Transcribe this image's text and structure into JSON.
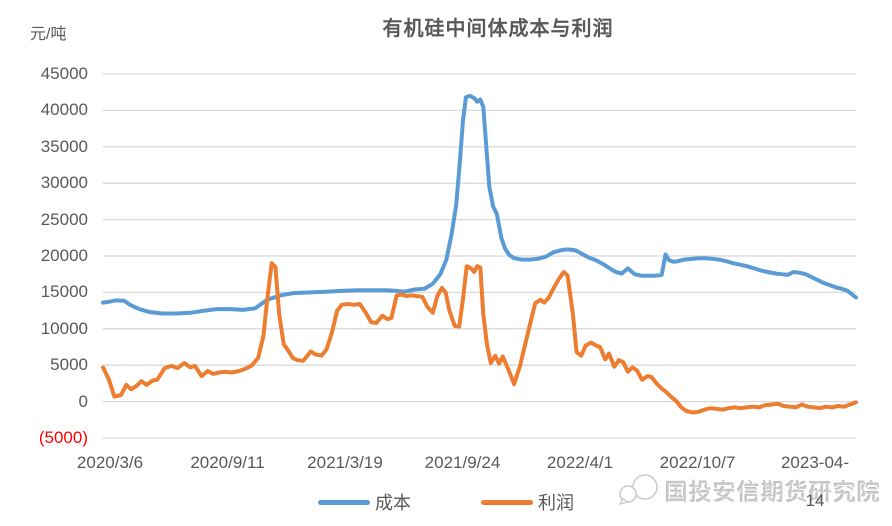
{
  "chart_data": {
    "type": "line",
    "title": "有机硅中间体成本与利润",
    "y_unit_label": "元/吨",
    "ylim": [
      -5000,
      45000
    ],
    "y_tick_interval": 5000,
    "grid": true,
    "legend_position": "bottom",
    "x_encoding": "t is fraction of time axis from 2020/3/6 to 2023-04-14 (weekly data)",
    "y_ticks": [
      {
        "label": "45000"
      },
      {
        "label": "40000"
      },
      {
        "label": "35000"
      },
      {
        "label": "30000"
      },
      {
        "label": "25000"
      },
      {
        "label": "20000"
      },
      {
        "label": "15000"
      },
      {
        "label": "10000"
      },
      {
        "label": "5000"
      },
      {
        "label": "0"
      },
      {
        "label": "(5000)",
        "color": "#FF0000"
      }
    ],
    "x_ticks": [
      {
        "label": "2020/3/6",
        "lines": [
          "2020/3/6"
        ]
      },
      {
        "label": "2020/9/11",
        "lines": [
          "2020/9/11"
        ]
      },
      {
        "label": "2021/3/19",
        "lines": [
          "2021/3/19"
        ]
      },
      {
        "label": "2021/9/24",
        "lines": [
          "2021/9/24"
        ]
      },
      {
        "label": "2022/4/1",
        "lines": [
          "2022/4/1"
        ]
      },
      {
        "label": "2022/10/7",
        "lines": [
          "2022/10/7"
        ]
      },
      {
        "label": "2023-04-14",
        "lines": [
          "2023-04-",
          "14"
        ]
      }
    ],
    "series": [
      {
        "name": "成本",
        "color": "#5B9BD5",
        "points": [
          [
            0.0,
            13600
          ],
          [
            0.007,
            13700
          ],
          [
            0.017,
            13900
          ],
          [
            0.028,
            13850
          ],
          [
            0.036,
            13300
          ],
          [
            0.048,
            12700
          ],
          [
            0.062,
            12300
          ],
          [
            0.079,
            12100
          ],
          [
            0.098,
            12100
          ],
          [
            0.116,
            12200
          ],
          [
            0.135,
            12500
          ],
          [
            0.151,
            12700
          ],
          [
            0.169,
            12700
          ],
          [
            0.186,
            12600
          ],
          [
            0.202,
            12800
          ],
          [
            0.218,
            14000
          ],
          [
            0.236,
            14600
          ],
          [
            0.253,
            14900
          ],
          [
            0.276,
            15000
          ],
          [
            0.296,
            15100
          ],
          [
            0.316,
            15200
          ],
          [
            0.336,
            15300
          ],
          [
            0.356,
            15300
          ],
          [
            0.376,
            15300
          ],
          [
            0.39,
            15200
          ],
          [
            0.4,
            15100
          ],
          [
            0.414,
            15400
          ],
          [
            0.427,
            15500
          ],
          [
            0.438,
            16200
          ],
          [
            0.448,
            17500
          ],
          [
            0.456,
            19500
          ],
          [
            0.463,
            23000
          ],
          [
            0.469,
            27000
          ],
          [
            0.474,
            33000
          ],
          [
            0.478,
            38500
          ],
          [
            0.482,
            41800
          ],
          [
            0.487,
            42000
          ],
          [
            0.493,
            41700
          ],
          [
            0.497,
            41200
          ],
          [
            0.501,
            41500
          ],
          [
            0.505,
            40500
          ],
          [
            0.509,
            35000
          ],
          [
            0.513,
            29500
          ],
          [
            0.518,
            26800
          ],
          [
            0.523,
            25800
          ],
          [
            0.529,
            22500
          ],
          [
            0.534,
            21000
          ],
          [
            0.539,
            20200
          ],
          [
            0.546,
            19700
          ],
          [
            0.556,
            19500
          ],
          [
            0.566,
            19500
          ],
          [
            0.577,
            19600
          ],
          [
            0.588,
            19900
          ],
          [
            0.598,
            20500
          ],
          [
            0.608,
            20800
          ],
          [
            0.617,
            20900
          ],
          [
            0.627,
            20800
          ],
          [
            0.636,
            20300
          ],
          [
            0.645,
            19800
          ],
          [
            0.655,
            19400
          ],
          [
            0.664,
            18900
          ],
          [
            0.673,
            18300
          ],
          [
            0.681,
            17800
          ],
          [
            0.689,
            17600
          ],
          [
            0.697,
            18300
          ],
          [
            0.706,
            17500
          ],
          [
            0.715,
            17300
          ],
          [
            0.724,
            17300
          ],
          [
            0.734,
            17300
          ],
          [
            0.742,
            17400
          ],
          [
            0.747,
            20200
          ],
          [
            0.752,
            19400
          ],
          [
            0.758,
            19200
          ],
          [
            0.764,
            19300
          ],
          [
            0.772,
            19500
          ],
          [
            0.782,
            19600
          ],
          [
            0.791,
            19700
          ],
          [
            0.8,
            19700
          ],
          [
            0.81,
            19600
          ],
          [
            0.818,
            19500
          ],
          [
            0.827,
            19300
          ],
          [
            0.837,
            19000
          ],
          [
            0.846,
            18800
          ],
          [
            0.855,
            18600
          ],
          [
            0.865,
            18300
          ],
          [
            0.874,
            18000
          ],
          [
            0.883,
            17800
          ],
          [
            0.893,
            17600
          ],
          [
            0.901,
            17500
          ],
          [
            0.909,
            17400
          ],
          [
            0.917,
            17800
          ],
          [
            0.925,
            17700
          ],
          [
            0.933,
            17500
          ],
          [
            0.941,
            17100
          ],
          [
            0.949,
            16700
          ],
          [
            0.957,
            16300
          ],
          [
            0.965,
            16000
          ],
          [
            0.973,
            15700
          ],
          [
            0.981,
            15500
          ],
          [
            0.989,
            15200
          ],
          [
            0.994,
            14800
          ],
          [
            1.0,
            14300
          ]
        ]
      },
      {
        "name": "利润",
        "color": "#ED7D31",
        "points": [
          [
            0.0,
            4700
          ],
          [
            0.008,
            3000
          ],
          [
            0.015,
            700
          ],
          [
            0.024,
            900
          ],
          [
            0.031,
            2300
          ],
          [
            0.037,
            1700
          ],
          [
            0.044,
            2100
          ],
          [
            0.051,
            2800
          ],
          [
            0.058,
            2300
          ],
          [
            0.066,
            2900
          ],
          [
            0.072,
            3000
          ],
          [
            0.082,
            4600
          ],
          [
            0.091,
            4900
          ],
          [
            0.099,
            4600
          ],
          [
            0.108,
            5300
          ],
          [
            0.116,
            4700
          ],
          [
            0.122,
            4900
          ],
          [
            0.131,
            3500
          ],
          [
            0.139,
            4200
          ],
          [
            0.146,
            3800
          ],
          [
            0.154,
            4000
          ],
          [
            0.162,
            4100
          ],
          [
            0.171,
            4000
          ],
          [
            0.181,
            4200
          ],
          [
            0.189,
            4500
          ],
          [
            0.198,
            5000
          ],
          [
            0.206,
            6000
          ],
          [
            0.213,
            9000
          ],
          [
            0.218,
            14000
          ],
          [
            0.224,
            19000
          ],
          [
            0.229,
            18500
          ],
          [
            0.234,
            12000
          ],
          [
            0.24,
            7900
          ],
          [
            0.246,
            7000
          ],
          [
            0.252,
            6000
          ],
          [
            0.258,
            5700
          ],
          [
            0.266,
            5600
          ],
          [
            0.276,
            6900
          ],
          [
            0.282,
            6500
          ],
          [
            0.29,
            6300
          ],
          [
            0.297,
            7200
          ],
          [
            0.304,
            9500
          ],
          [
            0.311,
            12500
          ],
          [
            0.317,
            13300
          ],
          [
            0.325,
            13400
          ],
          [
            0.333,
            13300
          ],
          [
            0.341,
            13400
          ],
          [
            0.349,
            12200
          ],
          [
            0.356,
            10900
          ],
          [
            0.363,
            10800
          ],
          [
            0.371,
            11800
          ],
          [
            0.378,
            11300
          ],
          [
            0.383,
            11500
          ],
          [
            0.39,
            14600
          ],
          [
            0.396,
            14700
          ],
          [
            0.403,
            14500
          ],
          [
            0.41,
            14600
          ],
          [
            0.416,
            14500
          ],
          [
            0.424,
            14400
          ],
          [
            0.431,
            13000
          ],
          [
            0.438,
            12200
          ],
          [
            0.444,
            14500
          ],
          [
            0.45,
            15600
          ],
          [
            0.455,
            15000
          ],
          [
            0.46,
            12500
          ],
          [
            0.467,
            10400
          ],
          [
            0.473,
            10300
          ],
          [
            0.478,
            14000
          ],
          [
            0.483,
            18600
          ],
          [
            0.489,
            18300
          ],
          [
            0.493,
            17800
          ],
          [
            0.497,
            18600
          ],
          [
            0.501,
            18400
          ],
          [
            0.505,
            12000
          ],
          [
            0.51,
            7800
          ],
          [
            0.515,
            5300
          ],
          [
            0.521,
            6300
          ],
          [
            0.526,
            5200
          ],
          [
            0.531,
            6200
          ],
          [
            0.538,
            4500
          ],
          [
            0.546,
            2400
          ],
          [
            0.554,
            5000
          ],
          [
            0.561,
            8000
          ],
          [
            0.568,
            11000
          ],
          [
            0.574,
            13500
          ],
          [
            0.581,
            14000
          ],
          [
            0.586,
            13600
          ],
          [
            0.592,
            14300
          ],
          [
            0.598,
            15500
          ],
          [
            0.605,
            16800
          ],
          [
            0.612,
            17800
          ],
          [
            0.617,
            17300
          ],
          [
            0.624,
            12000
          ],
          [
            0.629,
            6800
          ],
          [
            0.635,
            6300
          ],
          [
            0.641,
            7700
          ],
          [
            0.648,
            8100
          ],
          [
            0.655,
            7700
          ],
          [
            0.66,
            7500
          ],
          [
            0.667,
            5800
          ],
          [
            0.672,
            6600
          ],
          [
            0.679,
            4800
          ],
          [
            0.685,
            5700
          ],
          [
            0.691,
            5400
          ],
          [
            0.697,
            4100
          ],
          [
            0.703,
            4700
          ],
          [
            0.709,
            4300
          ],
          [
            0.716,
            3000
          ],
          [
            0.723,
            3500
          ],
          [
            0.728,
            3400
          ],
          [
            0.735,
            2500
          ],
          [
            0.742,
            1800
          ],
          [
            0.748,
            1300
          ],
          [
            0.755,
            600
          ],
          [
            0.762,
            0
          ],
          [
            0.768,
            -800
          ],
          [
            0.775,
            -1300
          ],
          [
            0.783,
            -1500
          ],
          [
            0.791,
            -1400
          ],
          [
            0.799,
            -1100
          ],
          [
            0.807,
            -900
          ],
          [
            0.815,
            -1000
          ],
          [
            0.823,
            -1100
          ],
          [
            0.831,
            -900
          ],
          [
            0.839,
            -800
          ],
          [
            0.847,
            -900
          ],
          [
            0.855,
            -800
          ],
          [
            0.863,
            -700
          ],
          [
            0.871,
            -800
          ],
          [
            0.879,
            -500
          ],
          [
            0.888,
            -400
          ],
          [
            0.896,
            -300
          ],
          [
            0.904,
            -600
          ],
          [
            0.912,
            -700
          ],
          [
            0.92,
            -800
          ],
          [
            0.928,
            -400
          ],
          [
            0.936,
            -700
          ],
          [
            0.944,
            -800
          ],
          [
            0.952,
            -900
          ],
          [
            0.96,
            -700
          ],
          [
            0.968,
            -800
          ],
          [
            0.976,
            -600
          ],
          [
            0.984,
            -700
          ],
          [
            0.992,
            -400
          ],
          [
            1.0,
            -100
          ]
        ]
      }
    ]
  },
  "watermark": {
    "text": "国投安信期货研究院",
    "logo": "wechat-account-logo"
  },
  "colors": {
    "axis_text": "#595959",
    "gridline": "#D9D9D9",
    "negative_label": "#FF0000",
    "background": "#FFFFFF"
  }
}
